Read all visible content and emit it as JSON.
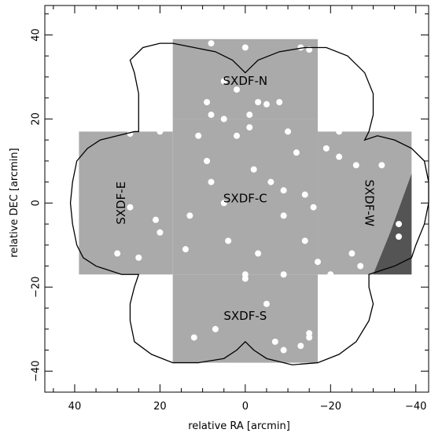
{
  "chart_data": {
    "type": "map",
    "xlabel": "relative RA [arcmin]",
    "ylabel": "relative DEC [arcmin]",
    "xlim": [
      47,
      -43
    ],
    "ylim": [
      -45,
      47
    ],
    "xticks": [
      40,
      20,
      0,
      -20,
      -40
    ],
    "yticks": [
      40,
      20,
      0,
      -20,
      -40
    ],
    "fields": [
      {
        "name": "SXDF-N",
        "label": "SXDF-N",
        "x": [
          17,
          -17
        ],
        "y": [
          39,
          20
        ],
        "label_x": 0,
        "label_y": 29,
        "label_rotate": 0
      },
      {
        "name": "SXDF-C",
        "label": "SXDF-C",
        "x": [
          17,
          -17
        ],
        "y": [
          20,
          -17
        ],
        "label_x": 0,
        "label_y": 1,
        "label_rotate": 0
      },
      {
        "name": "SXDF-S",
        "label": "SXDF-S",
        "x": [
          17,
          -17
        ],
        "y": [
          -17,
          -38
        ],
        "label_x": 0,
        "label_y": -27,
        "label_rotate": 0
      },
      {
        "name": "SXDF-E",
        "label": "SXDF-E",
        "x": [
          39,
          17
        ],
        "y": [
          17,
          -17
        ],
        "label_x": 29,
        "label_y": 0,
        "label_rotate": -90
      },
      {
        "name": "SXDF-W",
        "label": "SXDF-W",
        "x": [
          -17,
          -39
        ],
        "y": [
          17,
          -17
        ],
        "label_x": -29,
        "label_y": 0,
        "label_rotate": 90
      }
    ],
    "outline": [
      [
        17,
        38
      ],
      [
        12,
        37
      ],
      [
        7,
        36
      ],
      [
        3,
        34
      ],
      [
        1,
        32
      ],
      [
        0,
        31
      ],
      [
        -1,
        32
      ],
      [
        -3,
        34
      ],
      [
        -8,
        36
      ],
      [
        -14,
        37
      ],
      [
        -19,
        37
      ],
      [
        -24,
        35
      ],
      [
        -28,
        31
      ],
      [
        -30,
        26
      ],
      [
        -30,
        21
      ],
      [
        -29,
        17
      ],
      [
        -28,
        15
      ],
      [
        -31,
        16
      ],
      [
        -35,
        15
      ],
      [
        -39,
        13
      ],
      [
        -42,
        10
      ],
      [
        -43,
        5
      ],
      [
        -43,
        0
      ],
      [
        -42,
        -5
      ],
      [
        -40,
        -10
      ],
      [
        -39,
        -13
      ],
      [
        -35,
        -15
      ],
      [
        -32,
        -16
      ],
      [
        -29,
        -17
      ],
      [
        -29,
        -20
      ],
      [
        -30,
        -24
      ],
      [
        -29,
        -28
      ],
      [
        -26,
        -33
      ],
      [
        -22,
        -36
      ],
      [
        -17,
        -38
      ],
      [
        -11,
        -38.5
      ],
      [
        -5,
        -37
      ],
      [
        -2,
        -35
      ],
      [
        0,
        -33
      ],
      [
        2,
        -35
      ],
      [
        5,
        -37
      ],
      [
        11,
        -38
      ],
      [
        17,
        -38
      ],
      [
        22,
        -36
      ],
      [
        26,
        -33
      ],
      [
        27,
        -28
      ],
      [
        27,
        -24
      ],
      [
        26,
        -20
      ],
      [
        25,
        -17
      ],
      [
        29,
        -17
      ],
      [
        32,
        -16
      ],
      [
        35,
        -15
      ],
      [
        38,
        -13
      ],
      [
        39.5,
        -10
      ],
      [
        40.5,
        -5
      ],
      [
        41,
        0
      ],
      [
        40.5,
        5
      ],
      [
        39.5,
        10
      ],
      [
        37,
        13
      ],
      [
        34,
        15
      ],
      [
        30,
        16
      ],
      [
        26,
        17
      ],
      [
        25,
        17
      ],
      [
        25,
        21
      ],
      [
        25,
        26
      ],
      [
        26,
        31
      ],
      [
        27,
        34
      ],
      [
        24,
        37
      ],
      [
        20,
        38
      ],
      [
        17,
        38
      ]
    ],
    "dark_region": [
      [
        -39,
        7
      ],
      [
        -39,
        -17
      ],
      [
        -30,
        -17
      ],
      [
        -34,
        -7
      ]
    ],
    "masked_holes": [
      [
        8,
        38
      ],
      [
        0,
        37
      ],
      [
        -13,
        37
      ],
      [
        -15,
        36.5
      ],
      [
        9,
        24
      ],
      [
        5,
        29
      ],
      [
        2,
        27
      ],
      [
        -3,
        24
      ],
      [
        -5,
        23.5
      ],
      [
        -8,
        24
      ],
      [
        8,
        21
      ],
      [
        -1,
        21
      ],
      [
        20,
        17
      ],
      [
        27,
        16.5
      ],
      [
        5,
        20
      ],
      [
        -1,
        18
      ],
      [
        -10,
        17
      ],
      [
        -22,
        17
      ],
      [
        2,
        16
      ],
      [
        11,
        16
      ],
      [
        -12,
        12
      ],
      [
        -19,
        13
      ],
      [
        9,
        10
      ],
      [
        8,
        5
      ],
      [
        5,
        0
      ],
      [
        -2,
        8
      ],
      [
        -6,
        5
      ],
      [
        -9,
        3
      ],
      [
        -14,
        2
      ],
      [
        -16,
        -1
      ],
      [
        -22,
        11
      ],
      [
        -26,
        9
      ],
      [
        -32,
        9
      ],
      [
        27,
        -1
      ],
      [
        21,
        -4
      ],
      [
        20,
        -7
      ],
      [
        13,
        -3
      ],
      [
        4,
        -9
      ],
      [
        -9,
        -3
      ],
      [
        -3,
        -12
      ],
      [
        -14,
        -9
      ],
      [
        -17,
        -14
      ],
      [
        -20,
        -17
      ],
      [
        30,
        -12
      ],
      [
        25,
        -13
      ],
      [
        14,
        -11
      ],
      [
        -25,
        -12
      ],
      [
        -27,
        -15
      ],
      [
        -36,
        -5
      ],
      [
        -36,
        -8
      ],
      [
        0,
        -17
      ],
      [
        0,
        -18
      ],
      [
        -5,
        -24
      ],
      [
        -9,
        -17
      ],
      [
        -15,
        -31
      ],
      [
        12,
        -32
      ],
      [
        -7,
        -33
      ],
      [
        -9,
        -35
      ],
      [
        -13,
        -34
      ],
      [
        -15,
        -32
      ],
      [
        7,
        -30
      ]
    ],
    "colors": {
      "field": "#aaaaaa",
      "dark": "#545454",
      "outline": "#000000",
      "background": "#ffffff"
    }
  }
}
